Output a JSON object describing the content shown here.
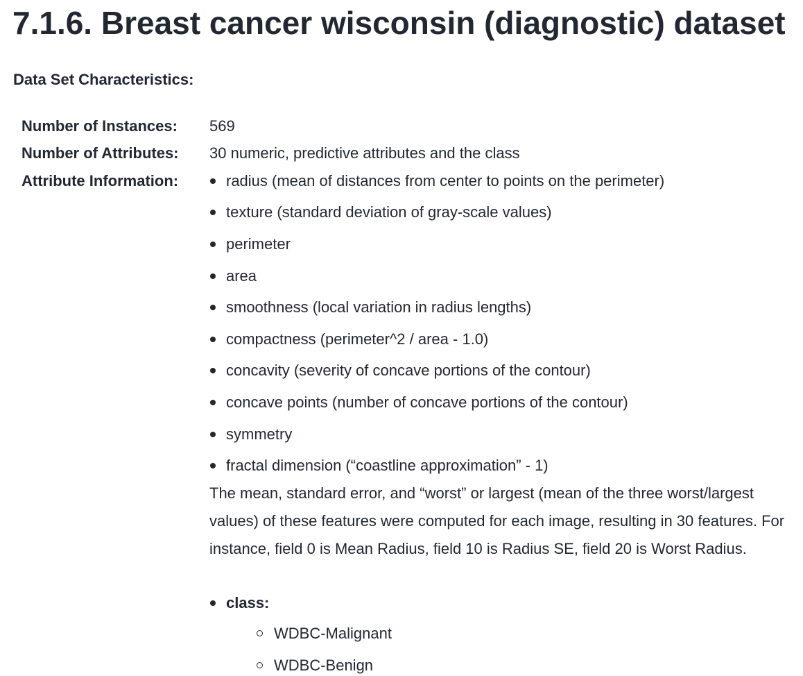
{
  "header": {
    "title": "7.1.6. Breast cancer wisconsin (diagnostic) dataset"
  },
  "section": {
    "heading": "Data Set Characteristics:"
  },
  "fields": [
    {
      "label": "Number of Instances:",
      "value": "569"
    },
    {
      "label": "Number of Attributes:",
      "value": "30 numeric, predictive attributes and the class"
    },
    {
      "label": "Attribute Information:",
      "items": [
        "radius (mean of distances from center to points on the perimeter)",
        "texture (standard deviation of gray-scale values)",
        "perimeter",
        "area",
        "smoothness (local variation in radius lengths)",
        "compactness (perimeter^2 / area - 1.0)",
        "concavity (severity of concave portions of the contour)",
        "concave points (number of concave portions of the contour)",
        "symmetry",
        "fractal dimension (“coastline approximation” - 1)"
      ],
      "note": "The mean, standard error, and “worst” or largest (mean of the three worst/largest values) of these features were computed for each image, resulting in 30 features. For instance, field 0 is Mean Radius, field 10 is Radius SE, field 20 is Worst Radius.",
      "class": {
        "label": "class:",
        "items": [
          "WDBC-Malignant",
          "WDBC-Benign"
        ]
      }
    }
  ]
}
